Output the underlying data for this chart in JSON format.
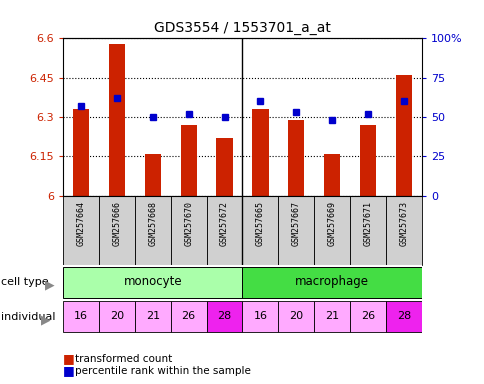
{
  "title": "GDS3554 / 1553701_a_at",
  "samples": [
    "GSM257664",
    "GSM257666",
    "GSM257668",
    "GSM257670",
    "GSM257672",
    "GSM257665",
    "GSM257667",
    "GSM257669",
    "GSM257671",
    "GSM257673"
  ],
  "bar_values": [
    6.33,
    6.58,
    6.16,
    6.27,
    6.22,
    6.33,
    6.29,
    6.16,
    6.27,
    6.46
  ],
  "percentile_values": [
    57,
    62,
    50,
    52,
    50,
    60,
    53,
    48,
    52,
    60
  ],
  "individuals": [
    "16",
    "20",
    "21",
    "26",
    "28",
    "16",
    "20",
    "21",
    "26",
    "28"
  ],
  "bar_color": "#cc2200",
  "percentile_color": "#0000cc",
  "ymin": 6.0,
  "ymax": 6.6,
  "yticks": [
    6.0,
    6.15,
    6.3,
    6.45,
    6.6
  ],
  "ytick_labels": [
    "6",
    "6.15",
    "6.3",
    "6.45",
    "6.6"
  ],
  "right_yticks": [
    0,
    25,
    50,
    75,
    100
  ],
  "right_ytick_labels": [
    "0",
    "25",
    "50",
    "75",
    "100%"
  ],
  "monocyte_color": "#aaffaa",
  "macrophage_color": "#44dd44",
  "tick_color_left": "#cc2200",
  "tick_color_right": "#0000cc",
  "background_color": "#ffffff",
  "sample_bg_color": "#d0d0d0",
  "indiv_colors": [
    "#ffaaff",
    "#ffaaff",
    "#ffaaff",
    "#ffaaff",
    "#ee22ee",
    "#ffaaff",
    "#ffaaff",
    "#ffaaff",
    "#ffaaff",
    "#ee22ee"
  ]
}
